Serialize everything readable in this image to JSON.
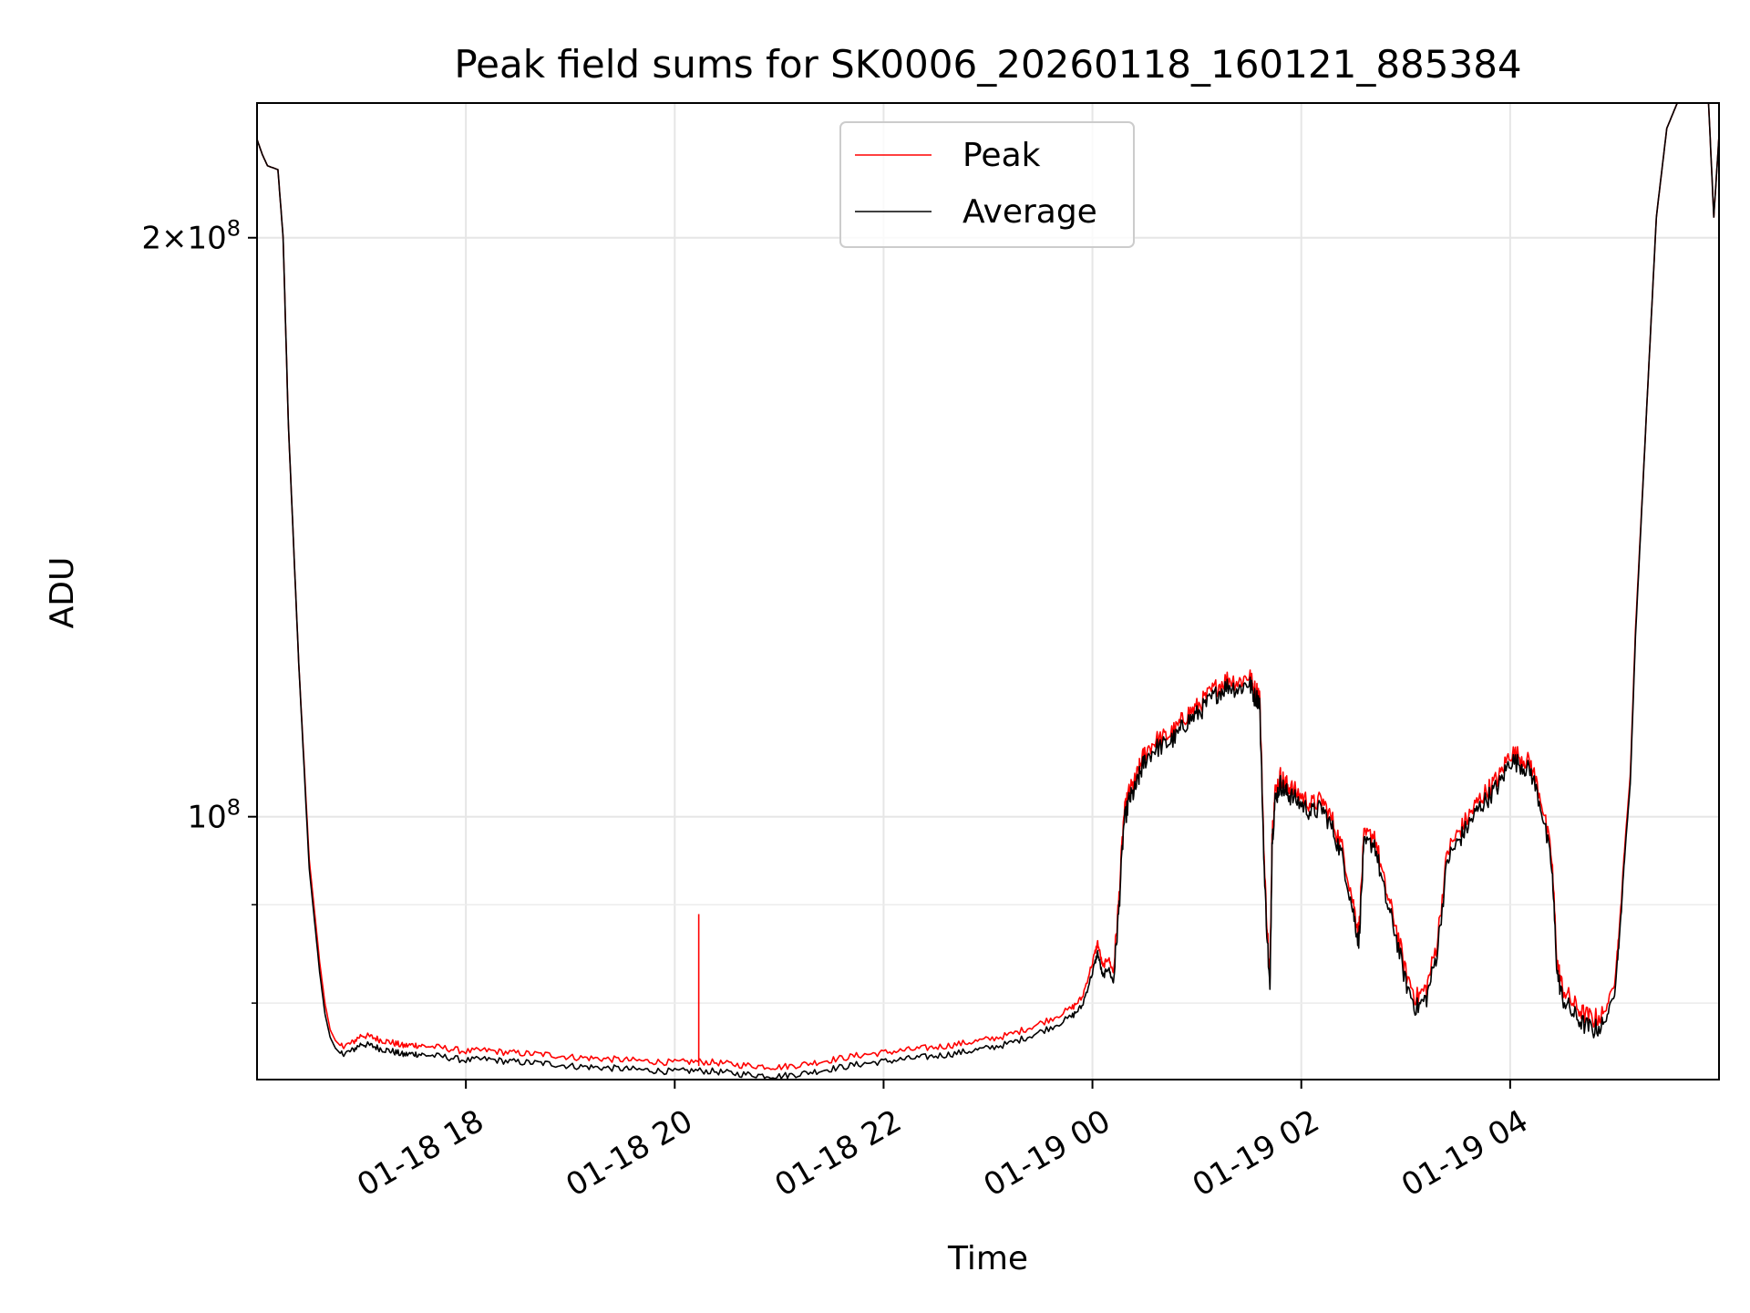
{
  "chart_data": {
    "type": "line",
    "title": "Peak field sums for SK0006_20260118_160121_885384",
    "xlabel": "Time",
    "ylabel": "ADU",
    "yscale": "log",
    "xlim": [
      16.0,
      30.0
    ],
    "ylim": [
      73000000,
      235000000
    ],
    "grid": true,
    "legend_position": "top-center",
    "x_ticks": [
      {
        "value": 18,
        "label": "01-18 18"
      },
      {
        "value": 20,
        "label": "01-18 20"
      },
      {
        "value": 22,
        "label": "01-18 22"
      },
      {
        "value": 24,
        "label": "01-19 00"
      },
      {
        "value": 26,
        "label": "01-19 02"
      },
      {
        "value": 28,
        "label": "01-19 04"
      }
    ],
    "y_ticks_major": [
      {
        "value": 100000000,
        "mantissa": "",
        "exponent": "8"
      },
      {
        "value": 200000000,
        "mantissa": "2",
        "exponent": "8"
      }
    ],
    "y_ticks_minor": [
      80000000,
      90000000
    ],
    "series": [
      {
        "name": "Peak",
        "color": "#ff0000",
        "x": [
          16.0,
          16.05,
          16.1,
          16.2,
          16.25,
          16.3,
          16.4,
          16.5,
          16.6,
          16.65,
          16.7,
          16.75,
          16.8,
          16.9,
          17.0,
          17.1,
          17.2,
          17.3,
          17.4,
          17.5,
          17.6,
          17.8,
          18.0,
          18.2,
          18.4,
          18.6,
          18.8,
          19.0,
          19.2,
          19.4,
          19.6,
          19.8,
          20.0,
          20.2,
          20.4,
          20.6,
          20.8,
          21.0,
          21.2,
          21.4,
          21.6,
          21.8,
          22.0,
          22.2,
          22.4,
          22.6,
          22.8,
          23.0,
          23.2,
          23.4,
          23.6,
          23.8,
          23.9,
          24.0,
          24.05,
          24.1,
          24.15,
          24.2,
          24.25,
          24.3,
          24.35,
          24.4,
          24.45,
          24.5,
          24.6,
          24.7,
          24.8,
          24.9,
          25.0,
          25.1,
          25.2,
          25.3,
          25.4,
          25.5,
          25.55,
          25.6,
          25.65,
          25.7,
          25.72,
          25.75,
          25.8,
          25.85,
          25.9,
          26.0,
          26.1,
          26.2,
          26.3,
          26.4,
          26.5,
          26.55,
          26.6,
          26.7,
          26.8,
          26.9,
          27.0,
          27.1,
          27.2,
          27.3,
          27.4,
          27.5,
          27.6,
          27.7,
          27.8,
          27.9,
          28.0,
          28.1,
          28.2,
          28.3,
          28.4,
          28.45,
          28.5,
          28.6,
          28.7,
          28.8,
          28.9,
          29.0,
          29.05,
          29.1,
          29.15,
          29.2,
          29.3,
          29.4,
          29.5,
          29.6,
          29.7,
          29.8,
          29.9,
          29.95,
          30.0
        ],
        "values": [
          225000000,
          221000000,
          218000000,
          217000000,
          200000000,
          160000000,
          120000000,
          95000000,
          84000000,
          80000000,
          77500000,
          76500000,
          76000000,
          76200000,
          77000000,
          76800000,
          76500000,
          76300000,
          76000000,
          76100000,
          76000000,
          75800000,
          75500000,
          75600000,
          75400000,
          75300000,
          75200000,
          75000000,
          74900000,
          74800000,
          74700000,
          74600000,
          74500000,
          74600000,
          74500000,
          74300000,
          74200000,
          74100000,
          74300000,
          74600000,
          74900000,
          75200000,
          75400000,
          75600000,
          75800000,
          76000000,
          76300000,
          76600000,
          77000000,
          77700000,
          78500000,
          79500000,
          80500000,
          84000000,
          86000000,
          83500000,
          84500000,
          83000000,
          90000000,
          100000000,
          103000000,
          104000000,
          106000000,
          108000000,
          109500000,
          110000000,
          111000000,
          113000000,
          114000000,
          115500000,
          117000000,
          118000000,
          117500000,
          118500000,
          116500000,
          116000000,
          93000000,
          82000000,
          98000000,
          103000000,
          105000000,
          104000000,
          103500000,
          102500000,
          101500000,
          102000000,
          99500000,
          96000000,
          90000000,
          87000000,
          97500000,
          98000000,
          92000000,
          88000000,
          83000000,
          80500000,
          81500000,
          86000000,
          96000000,
          98000000,
          100000000,
          102000000,
          103500000,
          105000000,
          108000000,
          107500000,
          106500000,
          102000000,
          95000000,
          84000000,
          81500000,
          80000000,
          79000000,
          78500000,
          79000000,
          82000000,
          88000000,
          97000000,
          105000000,
          125000000,
          160000000,
          205000000,
          228000000,
          235000000,
          235000000,
          235000000,
          235000000,
          205000000,
          226000000
        ]
      },
      {
        "name": "Average",
        "color": "#000000",
        "x": [
          16.0,
          16.05,
          16.1,
          16.2,
          16.25,
          16.3,
          16.4,
          16.5,
          16.6,
          16.65,
          16.7,
          16.75,
          16.8,
          16.9,
          17.0,
          17.1,
          17.2,
          17.3,
          17.4,
          17.5,
          17.6,
          17.8,
          18.0,
          18.2,
          18.4,
          18.6,
          18.8,
          19.0,
          19.2,
          19.4,
          19.6,
          19.8,
          20.0,
          20.2,
          20.4,
          20.6,
          20.8,
          21.0,
          21.2,
          21.4,
          21.6,
          21.8,
          22.0,
          22.2,
          22.4,
          22.6,
          22.8,
          23.0,
          23.2,
          23.4,
          23.6,
          23.8,
          23.9,
          24.0,
          24.05,
          24.1,
          24.15,
          24.2,
          24.25,
          24.3,
          24.35,
          24.4,
          24.45,
          24.5,
          24.6,
          24.7,
          24.8,
          24.9,
          25.0,
          25.1,
          25.2,
          25.3,
          25.4,
          25.5,
          25.55,
          25.6,
          25.65,
          25.7,
          25.72,
          25.75,
          25.8,
          25.85,
          25.9,
          26.0,
          26.1,
          26.2,
          26.3,
          26.4,
          26.5,
          26.55,
          26.6,
          26.7,
          26.8,
          26.9,
          27.0,
          27.1,
          27.2,
          27.3,
          27.4,
          27.5,
          27.6,
          27.7,
          27.8,
          27.9,
          28.0,
          28.1,
          28.2,
          28.3,
          28.4,
          28.45,
          28.5,
          28.6,
          28.7,
          28.8,
          28.9,
          29.0,
          29.05,
          29.1,
          29.15,
          29.2,
          29.3,
          29.4,
          29.5,
          29.6,
          29.7,
          29.8,
          29.9,
          29.95,
          30.0
        ],
        "values": [
          225000000,
          221000000,
          218000000,
          217000000,
          200000000,
          160000000,
          120000000,
          94000000,
          83000000,
          79000000,
          76800000,
          75800000,
          75300000,
          75500000,
          76200000,
          76000000,
          75700000,
          75500000,
          75200000,
          75300000,
          75200000,
          75000000,
          74700000,
          74800000,
          74600000,
          74500000,
          74400000,
          74200000,
          74100000,
          74000000,
          73900000,
          73800000,
          73700000,
          73800000,
          73700000,
          73500000,
          73400000,
          73300000,
          73500000,
          73800000,
          74100000,
          74400000,
          74600000,
          74800000,
          75000000,
          75200000,
          75500000,
          75800000,
          76200000,
          76900000,
          77700000,
          78700000,
          79700000,
          83000000,
          85000000,
          82500000,
          83500000,
          82000000,
          89000000,
          99000000,
          102000000,
          103000000,
          105000000,
          107000000,
          108500000,
          109000000,
          110000000,
          112000000,
          113000000,
          114500000,
          116000000,
          117000000,
          116500000,
          117500000,
          115500000,
          115000000,
          92000000,
          81000000,
          97000000,
          102000000,
          104000000,
          103000000,
          102500000,
          101500000,
          100500000,
          101000000,
          98500000,
          95000000,
          89000000,
          86000000,
          96500000,
          97000000,
          91000000,
          87000000,
          82000000,
          79500000,
          80500000,
          85000000,
          95000000,
          97000000,
          99000000,
          101000000,
          102500000,
          104000000,
          107000000,
          106500000,
          105500000,
          101000000,
          94000000,
          83000000,
          80500000,
          79000000,
          78000000,
          77500000,
          78000000,
          81000000,
          87000000,
          96000000,
          104000000,
          124000000,
          160000000,
          205000000,
          228000000,
          235000000,
          235000000,
          235000000,
          235000000,
          205000000,
          226000000
        ]
      }
    ],
    "annotations": [
      {
        "type": "spike",
        "series": "Peak",
        "x": 20.23,
        "value": 89000000
      }
    ]
  }
}
